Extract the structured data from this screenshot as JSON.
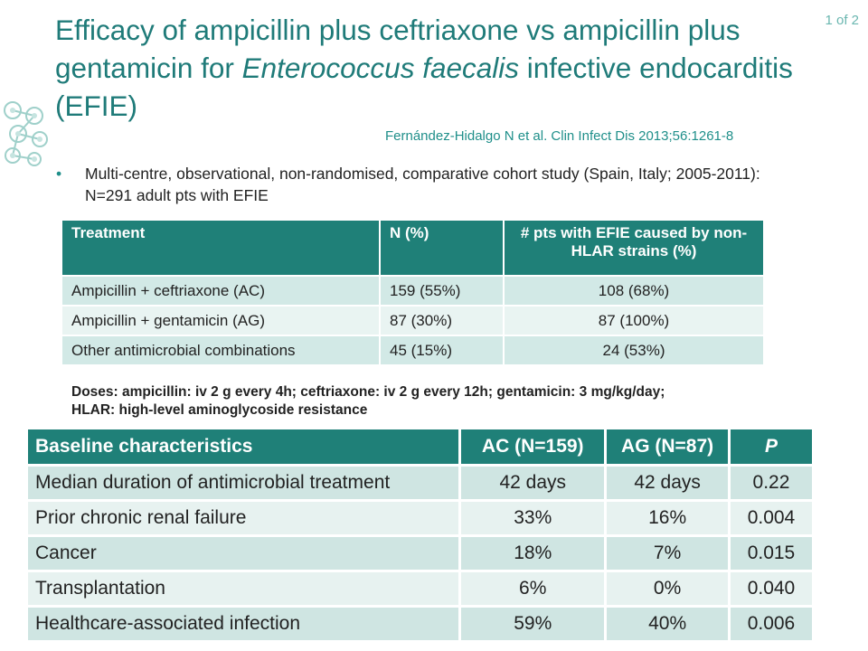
{
  "page_number": "1 of 2",
  "title": {
    "part1": "Efficacy of ampicillin plus ceftriaxone vs ampicillin plus gentamicin for ",
    "italic": "Enterococcus faecalis",
    "part2": " infective endocarditis (EFIE)"
  },
  "citation": "Fernández-Hidalgo N et al. Clin Infect Dis 2013;56:1261-8",
  "bullet": "Multi-centre, observational, non-randomised, comparative cohort study (Spain, Italy; 2005-2011): N=291 adult pts with EFIE",
  "treatment_table": {
    "headers": [
      "Treatment",
      "N (%)",
      "# pts with EFIE caused by non-HLAR strains (%)"
    ],
    "rows": [
      [
        "Ampicillin + ceftriaxone (AC)",
        "159 (55%)",
        "108 (68%)"
      ],
      [
        "Ampicillin + gentamicin (AG)",
        "87 (30%)",
        "87 (100%)"
      ],
      [
        "Other antimicrobial combinations",
        "45 (15%)",
        "24 (53%)"
      ]
    ]
  },
  "doses_note": {
    "line1": "Doses: ampicillin: iv 2 g every 4h; ceftriaxone: iv 2 g every 12h; gentamicin: 3 mg/kg/day;",
    "line2": "HLAR: high-level aminoglycoside resistance"
  },
  "baseline_table": {
    "headers": [
      "Baseline characteristics",
      "AC (N=159)",
      "AG (N=87)",
      "P"
    ],
    "rows": [
      [
        "Median duration of antimicrobial treatment",
        "42 days",
        "42 days",
        "0.22"
      ],
      [
        "Prior chronic renal failure",
        "33%",
        "16%",
        "0.004"
      ],
      [
        "Cancer",
        "18%",
        "7%",
        "0.015"
      ],
      [
        "Transplantation",
        "6%",
        "0%",
        "0.040"
      ],
      [
        "Healthcare-associated infection",
        "59%",
        "40%",
        "0.006"
      ]
    ]
  },
  "colors": {
    "title": "#1f7b79",
    "header_fill": "#1f8078",
    "row_dark": "#d2e9e6",
    "row_light": "#e9f4f2"
  }
}
